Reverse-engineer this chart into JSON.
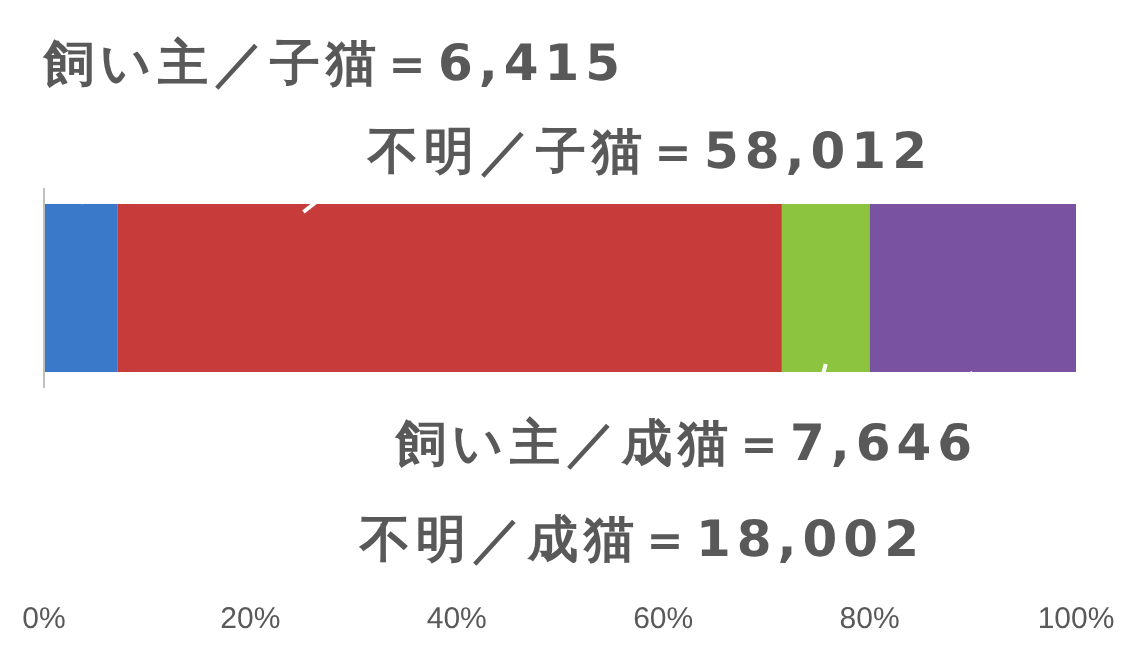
{
  "chart_data": {
    "type": "bar",
    "orientation": "horizontal",
    "stacked": true,
    "categories": [
      null
    ],
    "series": [
      {
        "color": "#3a78c9",
        "values": [
          7.1
        ]
      },
      {
        "color": "#c83b3b",
        "values": [
          64.4
        ]
      },
      {
        "color": "#8cc43f",
        "values": [
          8.5
        ]
      },
      {
        "color": "#7a52a2",
        "values": [
          20.0
        ]
      }
    ],
    "xlim": [
      0,
      100
    ],
    "xticks": [
      {
        "value": 0,
        "label": "0%"
      },
      {
        "value": 20,
        "label": "20%"
      },
      {
        "value": 40,
        "label": "40%"
      },
      {
        "value": 60,
        "label": "60%"
      },
      {
        "value": 80,
        "label": "80%"
      },
      {
        "value": 100,
        "label": "100%"
      }
    ],
    "annotations": [
      "飼い主／子猫＝6,415",
      "不明／子猫＝58,012",
      "飼い主／成猫＝7,646",
      "不明／成猫＝18,002"
    ]
  }
}
